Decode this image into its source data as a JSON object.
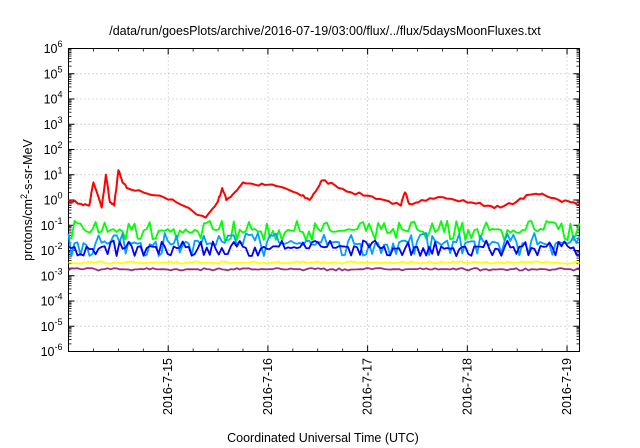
{
  "chart_data": {
    "type": "line",
    "title": "/data/run/goesPlots/archive/2016-07-19/03:00/flux/../flux/5daysMoonFluxes.txt",
    "xlabel": "Coordinated Universal Time (UTC)",
    "ylabel": {
      "base": "protons/cm",
      "sup": "2",
      "rest": "-s-sr-MeV"
    },
    "y_scale": "log",
    "y_ticks": [
      {
        "base": "10",
        "exp": "6",
        "value": 1000000.0
      },
      {
        "base": "10",
        "exp": "5",
        "value": 100000.0
      },
      {
        "base": "10",
        "exp": "4",
        "value": 10000.0
      },
      {
        "base": "10",
        "exp": "3",
        "value": 1000.0
      },
      {
        "base": "10",
        "exp": "2",
        "value": 100.0
      },
      {
        "base": "10",
        "exp": "1",
        "value": 10.0
      },
      {
        "base": "10",
        "exp": "0",
        "value": 1.0
      },
      {
        "base": "10",
        "exp": "-1",
        "value": 0.1
      },
      {
        "base": "10",
        "exp": "-2",
        "value": 0.01
      },
      {
        "base": "10",
        "exp": "-3",
        "value": 0.001
      },
      {
        "base": "10",
        "exp": "-4",
        "value": 0.0001
      },
      {
        "base": "10",
        "exp": "-5",
        "value": 1e-05
      },
      {
        "base": "10",
        "exp": "-6",
        "value": 1e-06
      }
    ],
    "ylim": [
      1e-06,
      1000000.0
    ],
    "x_ticks": [
      {
        "label": "2016-7-15",
        "day": 1
      },
      {
        "label": "2016-7-16",
        "day": 2
      },
      {
        "label": "2016-7-17",
        "day": 3
      },
      {
        "label": "2016-7-18",
        "day": 4
      },
      {
        "label": "2016-7-19",
        "day": 5
      }
    ],
    "xlim": [
      "2016-07-14 00:00",
      "2016-07-19 03:00"
    ],
    "grid": true,
    "legend": "none",
    "series": [
      {
        "color": "#ff0000",
        "x": [
          "2016-07-14 00:00",
          "2016-07-14 03:00",
          "2016-07-14 05:00",
          "2016-07-14 06:00",
          "2016-07-14 08:00",
          "2016-07-14 09:00",
          "2016-07-14 10:00",
          "2016-07-14 11:00",
          "2016-07-14 12:00",
          "2016-07-14 13:00",
          "2016-07-14 14:00",
          "2016-07-14 18:00",
          "2016-07-14 22:00",
          "2016-07-15 02:00",
          "2016-07-15 06:00",
          "2016-07-15 09:00",
          "2016-07-15 12:00",
          "2016-07-15 13:00",
          "2016-07-15 14:00",
          "2016-07-15 16:00",
          "2016-07-15 18:00",
          "2016-07-15 21:00",
          "2016-07-16 00:00",
          "2016-07-16 04:00",
          "2016-07-16 08:00",
          "2016-07-16 10:00",
          "2016-07-16 12:00",
          "2016-07-16 13:00",
          "2016-07-16 16:00",
          "2016-07-16 20:00",
          "2016-07-17 00:00",
          "2016-07-17 04:00",
          "2016-07-17 08:00",
          "2016-07-17 09:00",
          "2016-07-17 10:00",
          "2016-07-17 13:00",
          "2016-07-17 17:00",
          "2016-07-17 21:00",
          "2016-07-18 01:00",
          "2016-07-18 05:00",
          "2016-07-18 08:00",
          "2016-07-18 12:00",
          "2016-07-18 15:00",
          "2016-07-18 18:00",
          "2016-07-18 22:00",
          "2016-07-19 01:00",
          "2016-07-19 03:00"
        ],
        "values": [
          1.0,
          0.7,
          0.6,
          5.0,
          0.5,
          10.0,
          0.8,
          0.6,
          15.0,
          5.0,
          3.0,
          2.0,
          1.5,
          0.8,
          0.35,
          0.2,
          0.9,
          3.0,
          1.0,
          2.0,
          5.0,
          4.0,
          4.0,
          3.0,
          1.5,
          1.0,
          3.0,
          6.0,
          4.0,
          2.0,
          1.5,
          1.0,
          0.6,
          2.0,
          0.7,
          1.0,
          1.3,
          1.0,
          0.8,
          0.6,
          0.5,
          0.9,
          1.6,
          1.8,
          1.0,
          0.8,
          0.7
        ]
      },
      {
        "color": "#00ff00",
        "x": [
          "2016-07-14 00:00",
          "2016-07-19 03:00"
        ],
        "values": [
          0.06,
          0.06
        ],
        "band": [
          0.025,
          0.15
        ]
      },
      {
        "color": "#00a0ff",
        "x": [
          "2016-07-14 00:00",
          "2016-07-19 03:00"
        ],
        "values": [
          0.02,
          0.02
        ],
        "band": [
          0.006,
          0.05
        ]
      },
      {
        "color": "#0000ff",
        "x": [
          "2016-07-14 00:00",
          "2016-07-19 03:00"
        ],
        "values": [
          0.013,
          0.013
        ],
        "band": [
          0.006,
          0.025
        ]
      },
      {
        "color": "#ffff00",
        "x": [
          "2016-07-14 00:00",
          "2016-07-19 03:00"
        ],
        "values": [
          0.0033,
          0.0033
        ],
        "band": [
          0.003,
          0.0037
        ]
      },
      {
        "color": "#9b2d7a",
        "x": [
          "2016-07-14 00:00",
          "2016-07-19 03:00"
        ],
        "values": [
          0.0018,
          0.0018
        ],
        "band": [
          0.0016,
          0.002
        ]
      }
    ]
  }
}
